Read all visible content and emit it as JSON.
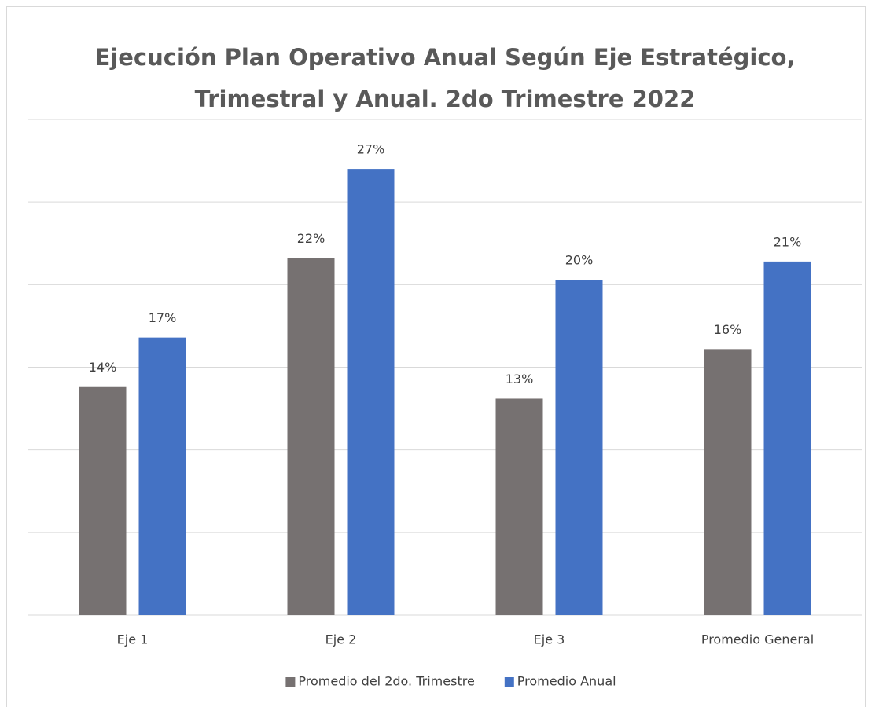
{
  "chart_data": {
    "type": "bar",
    "title": [
      "Ejecución Plan Operativo Anual Según Eje Estratégico,",
      "Trimestral y Anual. 2do Trimestre 2022"
    ],
    "categories": [
      "Eje 1",
      "Eje 2",
      "Eje 3",
      "Promedio General"
    ],
    "series": [
      {
        "name": "Promedio del 2do. Trimestre",
        "color": "#767171",
        "values": [
          13.8,
          21.6,
          13.1,
          16.1
        ],
        "value_labels": [
          "14%",
          "22%",
          "13%",
          "16%"
        ]
      },
      {
        "name": "Promedio Anual",
        "color": "#4472c4",
        "values": [
          16.8,
          27,
          20.3,
          21.4
        ],
        "value_labels": [
          "17%",
          "27%",
          "20%",
          "21%"
        ]
      }
    ],
    "ylim": [
      0,
      30
    ],
    "yticks": [
      0,
      5,
      10,
      15,
      20,
      25,
      30
    ],
    "grid": true,
    "legend": "bottom"
  }
}
